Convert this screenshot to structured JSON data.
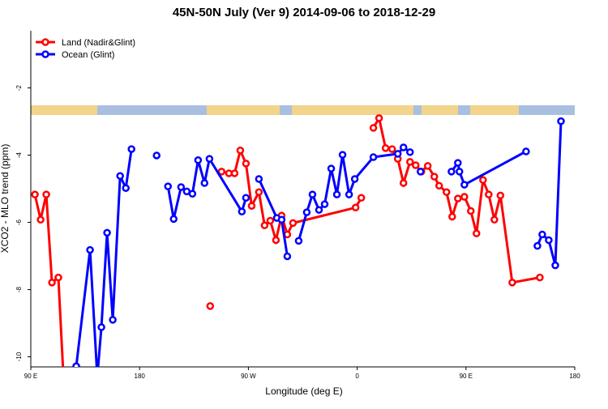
{
  "chart_data": {
    "type": "line",
    "title": "45N-50N July (Ver 9)   2014-09-06 to 2018-12-29",
    "x_label": "Longitude (deg E)",
    "y_label": "XCO2 - MLO trend (ppm)",
    "xlim": [
      90,
      540
    ],
    "ylim": [
      -10.3,
      -0.3
    ],
    "xticks": [
      {
        "value": 90,
        "label": "90 E"
      },
      180,
      {
        "value": 270,
        "label": "90 W"
      },
      {
        "value": 360,
        "label": "0"
      },
      {
        "value": 450,
        "label": "90 E"
      },
      {
        "value": 540,
        "label": "180"
      }
    ],
    "yticks": [
      -10,
      -8,
      -6,
      -4,
      -2
    ],
    "legend": "top-left",
    "series": [
      {
        "name": "Land (Nadir&Glint)",
        "color": "#ff0000",
        "x": [
          93.4,
          98.1,
          102.8,
          107.5,
          112.8,
          117,
          150.4,
          238.4,
          243.1,
          247.8,
          253.9,
          258.6,
          263.3,
          268.0,
          272.7,
          278.7,
          283.4,
          288.1,
          292.8,
          297.5,
          302.2,
          306.9,
          358.7,
          363.4,
          368.7,
          373.4,
          378.1,
          383.5,
          388.9,
          393.6,
          398.3,
          403.7,
          408.4,
          413.1,
          418.4,
          423.8,
          427.8,
          433.9,
          438.6,
          443.3,
          448.7,
          454.0,
          458.7,
          464.1,
          468.8,
          473.5,
          478.5,
          488.3,
          511.1
        ],
        "values": [
          -5.17,
          -5.92,
          -5.17,
          -7.79,
          -7.64,
          -10.6,
          null,
          -8.49,
          null,
          -4.49,
          -4.54,
          -4.54,
          -3.86,
          -4.25,
          -5.51,
          -5.1,
          -6.09,
          -5.95,
          -6.53,
          -5.8,
          -6.36,
          -6.02,
          -5.56,
          -5.27,
          null,
          -3.19,
          -2.9,
          -3.79,
          -3.82,
          -4.11,
          -4.83,
          -4.2,
          -4.3,
          -4.49,
          -4.32,
          -4.64,
          -4.91,
          -5.1,
          -5.83,
          -5.29,
          -5.24,
          -5.66,
          -6.33,
          -4.74,
          -5.17,
          -5.92,
          -5.2,
          -7.79,
          -7.64
        ]
      },
      {
        "name": "Ocean (Glint)",
        "color": "#0000ff",
        "x": [
          127.6,
          139.0,
          145,
          148.4,
          153.1,
          157.8,
          163.9,
          168.6,
          173.3,
          182.7,
          194.1,
          198.8,
          203.5,
          208.2,
          214.3,
          219.0,
          223.7,
          228.4,
          233.7,
          237.8,
          264.6,
          268.0,
          274.0,
          278.7,
          293.5,
          297.5,
          302.2,
          306.9,
          311.6,
          318.3,
          323.0,
          328.4,
          333.1,
          338.5,
          343.2,
          347.9,
          353.3,
          358.0,
          373.4,
          393.6,
          398.3,
          403.7,
          409.7,
          412.4,
          434.6,
          438.0,
          443.3,
          444.6,
          448.7,
          499.7,
          505,
          509.1,
          513.1,
          518.5,
          523.9,
          528.6,
          534.6
        ],
        "values": [
          -10.28,
          -6.82,
          -10.6,
          -9.12,
          -6.31,
          -8.9,
          -4.62,
          -4.98,
          -3.82,
          null,
          -4.01,
          null,
          -4.93,
          -5.9,
          -4.95,
          -5.08,
          -5.15,
          -4.15,
          -4.83,
          -4.11,
          -5.68,
          -5.27,
          null,
          -4.71,
          -5.87,
          -5.92,
          -7.01,
          null,
          -6.55,
          -5.7,
          -5.17,
          -5.63,
          -5.46,
          -4.4,
          -5.17,
          -3.99,
          -5.17,
          -4.71,
          -4.06,
          -3.96,
          -3.77,
          -3.91,
          null,
          -4.49,
          null,
          -4.49,
          -4.23,
          -4.49,
          -4.88,
          -3.89,
          null,
          -6.7,
          -6.36,
          -6.53,
          -7.28,
          -2.99,
          null
        ]
      }
    ]
  }
}
